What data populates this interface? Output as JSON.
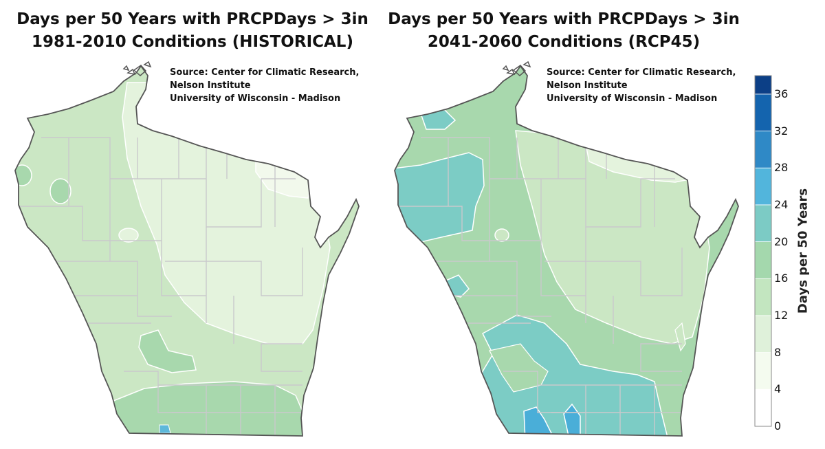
{
  "maps": [
    {
      "title_line1": "Days per 50 Years with PRCPDays > 3in",
      "title_line2": "1981-2010 Conditions (HISTORICAL)",
      "source_line1": "Source:  Center for Climatic Research,",
      "source_line2": "Nelson Institute",
      "source_line3": "University of Wisconsin - Madison",
      "fill_colors": {
        "base": "#cbe7c4",
        "light": "#e4f3dd",
        "lighter": "#f2f9ec",
        "medium": "#a8d8ad",
        "blue": "#5db8da"
      }
    },
    {
      "title_line1": "Days per 50 Years with PRCPDays > 3in",
      "title_line2": "2041-2060 Conditions (RCP45)",
      "source_line1": "Source:  Center for Climatic Research,",
      "source_line2": "Nelson Institute",
      "source_line3": "University of Wisconsin - Madison",
      "fill_colors": {
        "base": "#a8d8ad",
        "light": "#cbe7c4",
        "lighter": "#e4f3dd",
        "teal": "#7cccc5",
        "blue": "#4aaed8"
      }
    }
  ],
  "legend": {
    "title": "Days per 50 Years",
    "ticks": [
      "36",
      "32",
      "28",
      "24",
      "20",
      "16",
      "12",
      "8",
      "4",
      "0"
    ],
    "bins": [
      {
        "from": 0,
        "to": 4,
        "color": "#ffffff"
      },
      {
        "from": 4,
        "to": 8,
        "color": "#f4fbef"
      },
      {
        "from": 8,
        "to": 12,
        "color": "#dff1da"
      },
      {
        "from": 12,
        "to": 16,
        "color": "#c3e6c0"
      },
      {
        "from": 16,
        "to": 20,
        "color": "#a4d8ad"
      },
      {
        "from": 20,
        "to": 24,
        "color": "#7ccbc5"
      },
      {
        "from": 24,
        "to": 28,
        "color": "#52b5dc"
      },
      {
        "from": 28,
        "to": 32,
        "color": "#2f89c6"
      },
      {
        "from": 32,
        "to": 36,
        "color": "#1464ae"
      },
      {
        "from": 36,
        "to": 38,
        "color": "#0c3f86"
      }
    ],
    "max_value": 38
  }
}
